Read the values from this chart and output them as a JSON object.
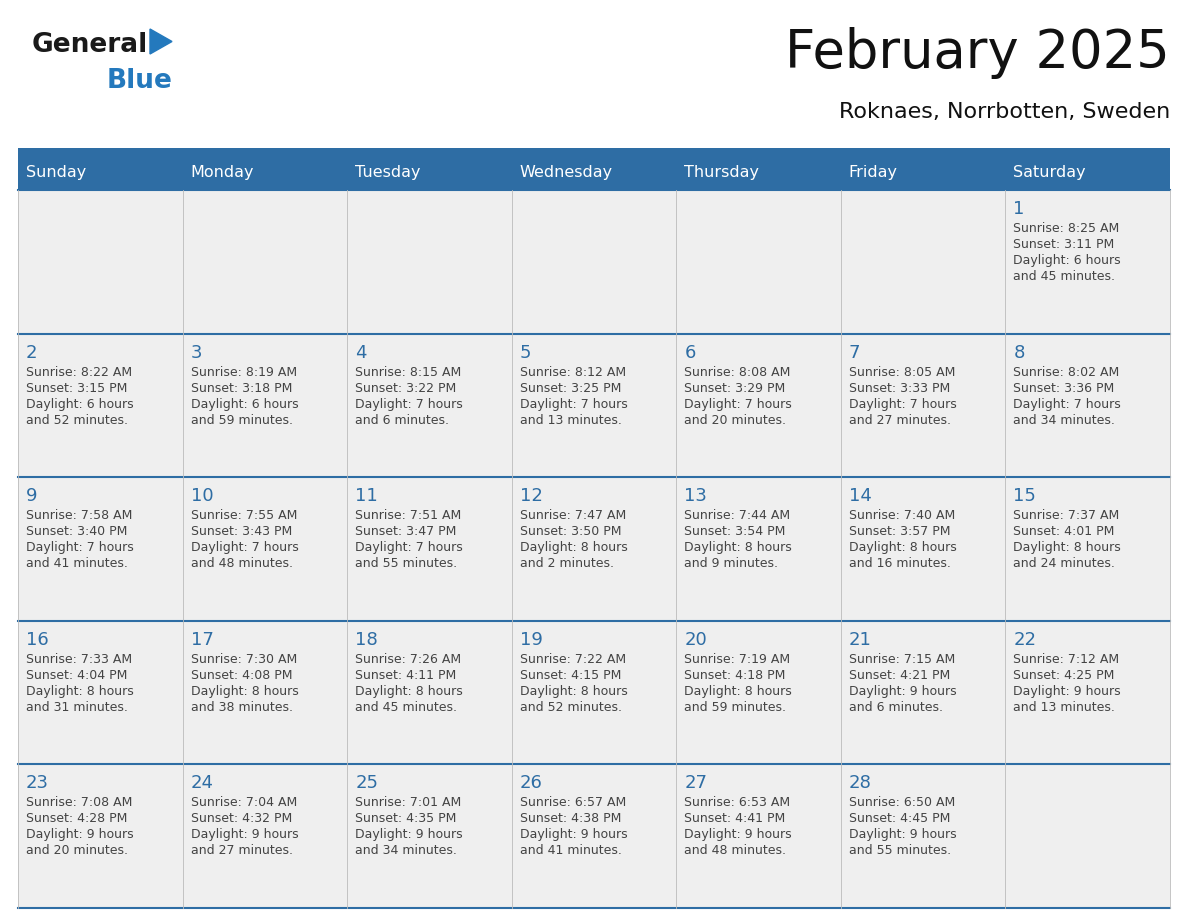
{
  "title": "February 2025",
  "subtitle": "Roknaes, Norrbotten, Sweden",
  "days_of_week": [
    "Sunday",
    "Monday",
    "Tuesday",
    "Wednesday",
    "Thursday",
    "Friday",
    "Saturday"
  ],
  "header_bg": "#2E6DA4",
  "header_text": "#FFFFFF",
  "cell_bg": "#EFEFEF",
  "border_color": "#2E6DA4",
  "day_num_color": "#2E6DA4",
  "text_color": "#444444",
  "logo_general_color": "#1a1a1a",
  "logo_blue_color": "#2479BD",
  "calendar_data": [
    [
      null,
      null,
      null,
      null,
      null,
      null,
      {
        "day": "1",
        "sunrise": "8:25 AM",
        "sunset": "3:11 PM",
        "daylight": "6 hours\nand 45 minutes."
      }
    ],
    [
      {
        "day": "2",
        "sunrise": "8:22 AM",
        "sunset": "3:15 PM",
        "daylight": "6 hours\nand 52 minutes."
      },
      {
        "day": "3",
        "sunrise": "8:19 AM",
        "sunset": "3:18 PM",
        "daylight": "6 hours\nand 59 minutes."
      },
      {
        "day": "4",
        "sunrise": "8:15 AM",
        "sunset": "3:22 PM",
        "daylight": "7 hours\nand 6 minutes."
      },
      {
        "day": "5",
        "sunrise": "8:12 AM",
        "sunset": "3:25 PM",
        "daylight": "7 hours\nand 13 minutes."
      },
      {
        "day": "6",
        "sunrise": "8:08 AM",
        "sunset": "3:29 PM",
        "daylight": "7 hours\nand 20 minutes."
      },
      {
        "day": "7",
        "sunrise": "8:05 AM",
        "sunset": "3:33 PM",
        "daylight": "7 hours\nand 27 minutes."
      },
      {
        "day": "8",
        "sunrise": "8:02 AM",
        "sunset": "3:36 PM",
        "daylight": "7 hours\nand 34 minutes."
      }
    ],
    [
      {
        "day": "9",
        "sunrise": "7:58 AM",
        "sunset": "3:40 PM",
        "daylight": "7 hours\nand 41 minutes."
      },
      {
        "day": "10",
        "sunrise": "7:55 AM",
        "sunset": "3:43 PM",
        "daylight": "7 hours\nand 48 minutes."
      },
      {
        "day": "11",
        "sunrise": "7:51 AM",
        "sunset": "3:47 PM",
        "daylight": "7 hours\nand 55 minutes."
      },
      {
        "day": "12",
        "sunrise": "7:47 AM",
        "sunset": "3:50 PM",
        "daylight": "8 hours\nand 2 minutes."
      },
      {
        "day": "13",
        "sunrise": "7:44 AM",
        "sunset": "3:54 PM",
        "daylight": "8 hours\nand 9 minutes."
      },
      {
        "day": "14",
        "sunrise": "7:40 AM",
        "sunset": "3:57 PM",
        "daylight": "8 hours\nand 16 minutes."
      },
      {
        "day": "15",
        "sunrise": "7:37 AM",
        "sunset": "4:01 PM",
        "daylight": "8 hours\nand 24 minutes."
      }
    ],
    [
      {
        "day": "16",
        "sunrise": "7:33 AM",
        "sunset": "4:04 PM",
        "daylight": "8 hours\nand 31 minutes."
      },
      {
        "day": "17",
        "sunrise": "7:30 AM",
        "sunset": "4:08 PM",
        "daylight": "8 hours\nand 38 minutes."
      },
      {
        "day": "18",
        "sunrise": "7:26 AM",
        "sunset": "4:11 PM",
        "daylight": "8 hours\nand 45 minutes."
      },
      {
        "day": "19",
        "sunrise": "7:22 AM",
        "sunset": "4:15 PM",
        "daylight": "8 hours\nand 52 minutes."
      },
      {
        "day": "20",
        "sunrise": "7:19 AM",
        "sunset": "4:18 PM",
        "daylight": "8 hours\nand 59 minutes."
      },
      {
        "day": "21",
        "sunrise": "7:15 AM",
        "sunset": "4:21 PM",
        "daylight": "9 hours\nand 6 minutes."
      },
      {
        "day": "22",
        "sunrise": "7:12 AM",
        "sunset": "4:25 PM",
        "daylight": "9 hours\nand 13 minutes."
      }
    ],
    [
      {
        "day": "23",
        "sunrise": "7:08 AM",
        "sunset": "4:28 PM",
        "daylight": "9 hours\nand 20 minutes."
      },
      {
        "day": "24",
        "sunrise": "7:04 AM",
        "sunset": "4:32 PM",
        "daylight": "9 hours\nand 27 minutes."
      },
      {
        "day": "25",
        "sunrise": "7:01 AM",
        "sunset": "4:35 PM",
        "daylight": "9 hours\nand 34 minutes."
      },
      {
        "day": "26",
        "sunrise": "6:57 AM",
        "sunset": "4:38 PM",
        "daylight": "9 hours\nand 41 minutes."
      },
      {
        "day": "27",
        "sunrise": "6:53 AM",
        "sunset": "4:41 PM",
        "daylight": "9 hours\nand 48 minutes."
      },
      {
        "day": "28",
        "sunrise": "6:50 AM",
        "sunset": "4:45 PM",
        "daylight": "9 hours\nand 55 minutes."
      },
      null
    ]
  ]
}
